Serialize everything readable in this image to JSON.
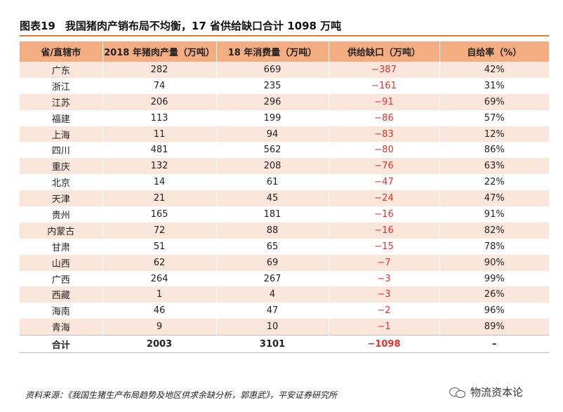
{
  "title": {
    "number": "图表19",
    "text": "我国猪肉产销布局不均衡，17 省供给缺口合计 1098 万吨"
  },
  "table": {
    "headers": [
      "省/直辖市",
      "2018 年猪肉产量（万吨）",
      "18 年消费量（万吨）",
      "供给缺口（万吨）",
      "自给率（%）"
    ],
    "rows": [
      [
        "广东",
        "282",
        "669",
        "−387",
        "42%"
      ],
      [
        "浙江",
        "74",
        "235",
        "−161",
        "31%"
      ],
      [
        "江苏",
        "206",
        "296",
        "−91",
        "69%"
      ],
      [
        "福建",
        "113",
        "199",
        "−86",
        "57%"
      ],
      [
        "上海",
        "11",
        "94",
        "−83",
        "12%"
      ],
      [
        "四川",
        "481",
        "562",
        "−80",
        "86%"
      ],
      [
        "重庆",
        "132",
        "208",
        "−76",
        "63%"
      ],
      [
        "北京",
        "14",
        "61",
        "−47",
        "22%"
      ],
      [
        "天津",
        "21",
        "45",
        "−24",
        "47%"
      ],
      [
        "贵州",
        "165",
        "181",
        "−16",
        "91%"
      ],
      [
        "内蒙古",
        "72",
        "88",
        "−16",
        "82%"
      ],
      [
        "甘肃",
        "51",
        "65",
        "−15",
        "78%"
      ],
      [
        "山西",
        "62",
        "69",
        "−7",
        "90%"
      ],
      [
        "广西",
        "264",
        "267",
        "−3",
        "99%"
      ],
      [
        "西藏",
        "1",
        "4",
        "−3",
        "26%"
      ],
      [
        "海南",
        "46",
        "47",
        "−2",
        "96%"
      ],
      [
        "青海",
        "9",
        "10",
        "−1",
        "89%"
      ]
    ],
    "total": [
      "合计",
      "2003",
      "3101",
      "−1098",
      "–"
    ]
  },
  "source": "资料来源：《我国生猪生产布局趋势及地区供求余缺分析，郭惠武》，平安证券研究所",
  "watermark": {
    "icon": "wechat-icon",
    "text": "物流资本论"
  },
  "colors": {
    "header_bg": "#f4ad80",
    "stripe": "#fbe6dc",
    "negative": "#e8302c",
    "rule": "#e07a2f"
  }
}
